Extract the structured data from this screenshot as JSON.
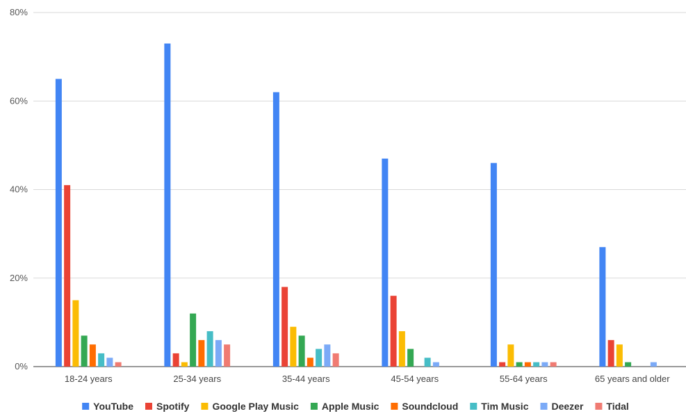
{
  "chart_data": {
    "type": "bar",
    "title": "",
    "xlabel": "",
    "ylabel": "",
    "ylim": [
      0,
      80
    ],
    "y_ticks": [
      "0%",
      "20%",
      "40%",
      "60%",
      "80%"
    ],
    "y_tick_values": [
      0,
      20,
      40,
      60,
      80
    ],
    "grid": true,
    "legend_position": "bottom",
    "categories": [
      "18-24 years",
      "25-34 years",
      "35-44 years",
      "45-54 years",
      "55-64 years",
      "65 years and older"
    ],
    "series": [
      {
        "name": "YouTube",
        "color": "#4285f4",
        "values": [
          65,
          73,
          62,
          47,
          46,
          27
        ]
      },
      {
        "name": "Spotify",
        "color": "#ea4335",
        "values": [
          41,
          3,
          18,
          16,
          1,
          6
        ]
      },
      {
        "name": "Google Play Music",
        "color": "#fbbc04",
        "values": [
          15,
          1,
          9,
          8,
          5,
          5
        ]
      },
      {
        "name": "Apple Music",
        "color": "#34a853",
        "values": [
          7,
          12,
          7,
          4,
          1,
          1
        ]
      },
      {
        "name": "Soundcloud",
        "color": "#ff6d01",
        "values": [
          5,
          6,
          2,
          0,
          1,
          0
        ]
      },
      {
        "name": "Tim Music",
        "color": "#46bdc6",
        "values": [
          3,
          8,
          4,
          2,
          1,
          0
        ]
      },
      {
        "name": "Deezer",
        "color": "#7baaf7",
        "values": [
          2,
          6,
          5,
          1,
          1,
          1
        ]
      },
      {
        "name": "Tidal",
        "color": "#f07b72",
        "values": [
          1,
          5,
          3,
          0,
          1,
          0
        ]
      }
    ]
  }
}
